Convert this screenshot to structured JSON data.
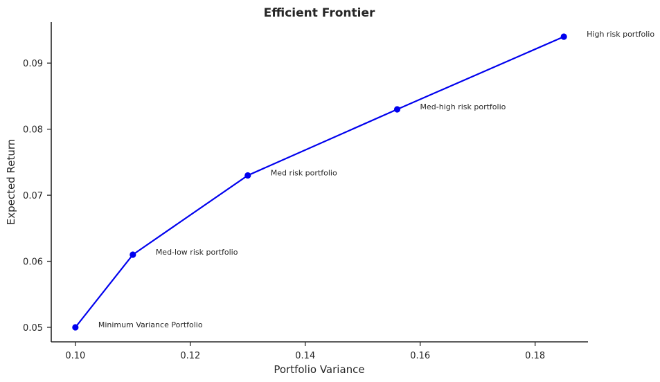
{
  "chart_data": {
    "type": "line",
    "title": "Efficient Frontier",
    "xlabel": "Portfolio Variance",
    "ylabel": "Expected Return",
    "xlim": [
      0.0958,
      0.1892
    ],
    "ylim": [
      0.0478,
      0.0962
    ],
    "xticks": [
      0.1,
      0.12,
      0.14,
      0.16,
      0.18
    ],
    "xtick_labels": [
      "0.10",
      "0.12",
      "0.14",
      "0.16",
      "0.18"
    ],
    "yticks": [
      0.05,
      0.06,
      0.07,
      0.08,
      0.09
    ],
    "ytick_labels": [
      "0.05",
      "0.06",
      "0.07",
      "0.08",
      "0.09"
    ],
    "grid": false,
    "color": "#0000ee",
    "series": [
      {
        "x": [
          0.1,
          0.11,
          0.13,
          0.156,
          0.185
        ],
        "y": [
          0.05,
          0.061,
          0.073,
          0.083,
          0.094
        ],
        "labels": [
          "Minimum Variance Portfolio",
          "Med-low risk portfolio",
          "Med risk portfolio",
          "Med-high risk portfolio",
          "High risk portfolio"
        ]
      }
    ]
  }
}
